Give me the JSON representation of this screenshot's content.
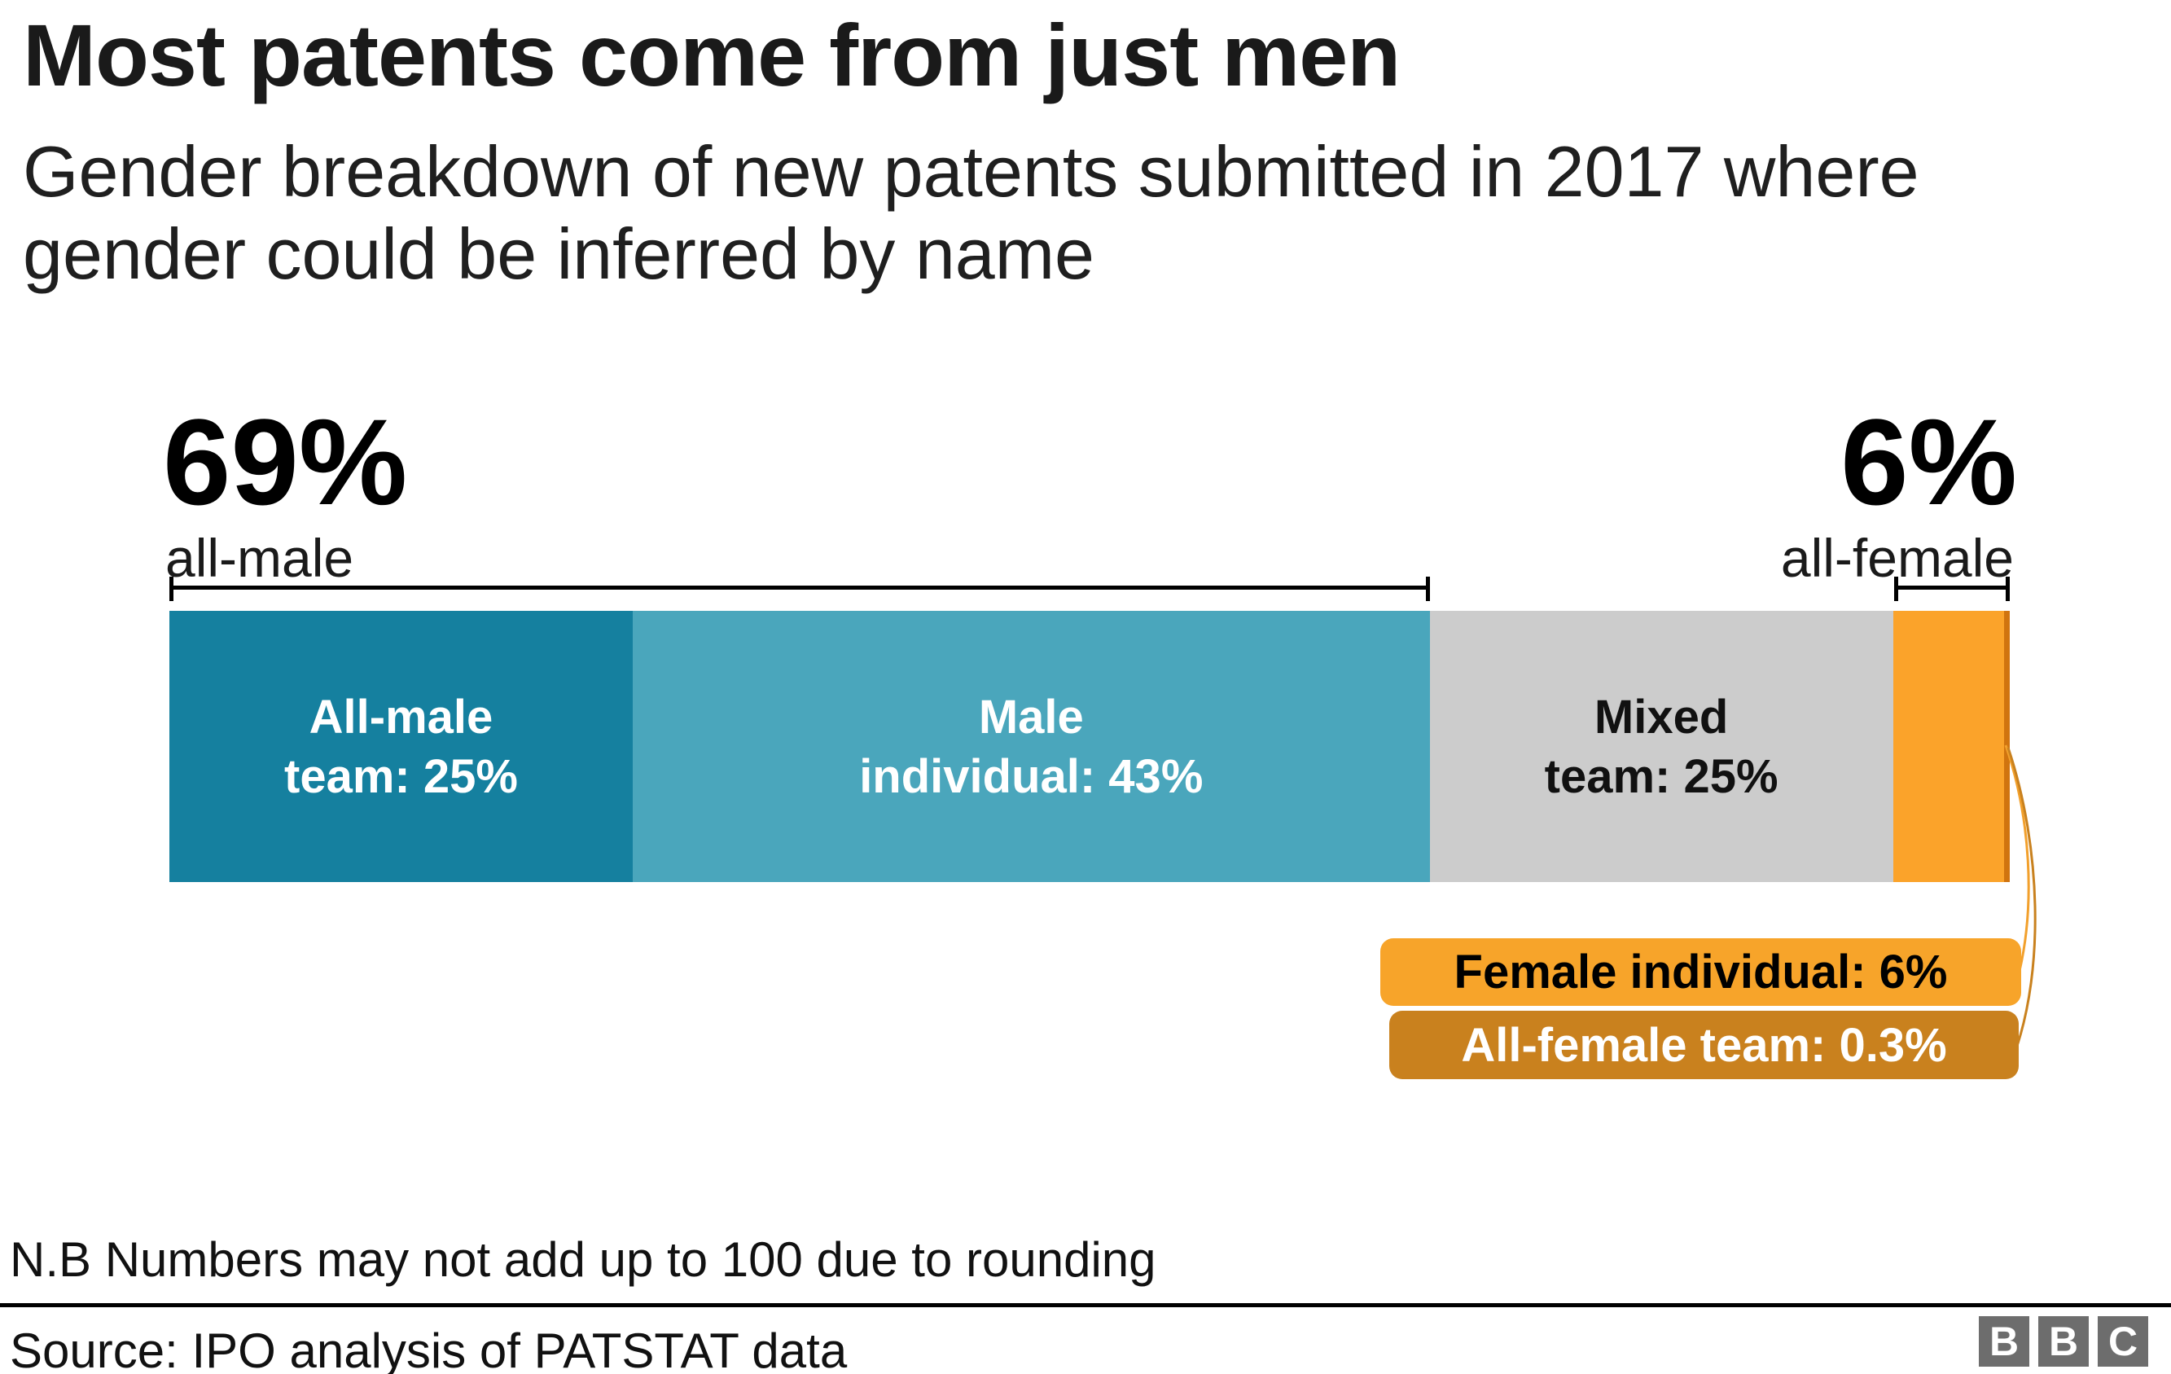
{
  "title": "Most patents come from just men",
  "subtitle_line1": "Gender breakdown of new patents submitted in 2017 where",
  "subtitle_line2": "gender could be inferred by name",
  "annotations": {
    "left_value": "69%",
    "left_label": "all-male",
    "right_value": "6%",
    "right_label": "all-female"
  },
  "chart_data": {
    "type": "bar",
    "stacked": true,
    "orientation": "horizontal",
    "unit": "percent",
    "title": "Gender breakdown of new patents submitted in 2017 where gender could be inferred by name",
    "segments": [
      {
        "name": "All-male team",
        "value": 25,
        "lines": [
          "All-male",
          "team: 25%"
        ],
        "color": "#15809f",
        "text_color": "#ffffff"
      },
      {
        "name": "Male individual",
        "value": 43,
        "lines": [
          "Male",
          "individual: 43%"
        ],
        "color": "#4aa6bc",
        "text_color": "#ffffff"
      },
      {
        "name": "Mixed team",
        "value": 25,
        "lines": [
          "Mixed",
          "team: 25%"
        ],
        "color": "#cccccc",
        "text_color": "#111111"
      },
      {
        "name": "Female individual",
        "value": 6,
        "lines": [],
        "color": "#fba32a",
        "text_color": "#000000"
      },
      {
        "name": "All-female team",
        "value": 0.3,
        "lines": [],
        "color": "#d0740f",
        "text_color": "#ffffff"
      }
    ],
    "brackets": [
      {
        "value": "69%",
        "label": "all-male",
        "from_pct": 0,
        "to_pct": 68.5
      },
      {
        "value": "6%",
        "label": "all-female",
        "from_pct": 93.7,
        "to_pct": 100
      }
    ],
    "annotation_note": "Numbers may not add up to 100 due to rounding"
  },
  "callouts": [
    {
      "text": "Female individual: 6%",
      "bg": "#f7a42a",
      "color": "#000000",
      "connector_color": "#f2a02c"
    },
    {
      "text": "All-female team: 0.3%",
      "bg": "#c9811e",
      "color": "#ffffff",
      "connector_color": "#c9811e"
    }
  ],
  "note": "N.B Numbers may not add up to 100 due to rounding",
  "source": "Source: IPO analysis of PATSTAT data",
  "logo": {
    "letters": [
      "B",
      "B",
      "C"
    ]
  }
}
